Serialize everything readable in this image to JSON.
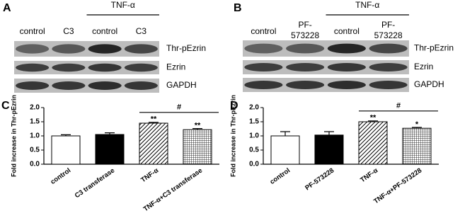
{
  "blot_panels": [
    {
      "label": "A",
      "treatment": "TNF-α",
      "lanes": [
        [
          "control"
        ],
        [
          "C3"
        ],
        [
          "control"
        ],
        [
          "C3"
        ]
      ],
      "rows": [
        "Thr-pEzrin",
        "Ezrin",
        "GAPDH"
      ]
    },
    {
      "label": "B",
      "treatment": "TNF-α",
      "lanes": [
        [
          "control"
        ],
        [
          "PF-",
          "573228"
        ],
        [
          "control"
        ],
        [
          "PF-",
          "573228"
        ]
      ],
      "rows": [
        "Thr-pEzrin",
        "Ezrin",
        "GAPDH"
      ]
    }
  ],
  "chart_data": [
    {
      "type": "bar",
      "panel_label": "C",
      "y_label": "Fold increase in Thr-pEzrin",
      "categories": [
        "control",
        "C3 transferase",
        "TNF-α",
        "TNF-α+C3 transferase"
      ],
      "values": [
        1.0,
        1.05,
        1.45,
        1.22
      ],
      "errors": [
        0.04,
        0.06,
        0.03,
        0.04
      ],
      "bar_styles": [
        "white",
        "black",
        "hatch",
        "grid"
      ],
      "significance": [
        null,
        null,
        "**",
        "**"
      ],
      "bracket_label": "#",
      "ylim": [
        0,
        2.0
      ],
      "yticks": [
        {
          "value": 0,
          "label": "0.0"
        },
        0.5,
        {
          "value": 1,
          "label": "1.0"
        },
        1.5,
        {
          "value": 2,
          "label": "2.0"
        }
      ]
    },
    {
      "type": "bar",
      "panel_label": "D",
      "y_label": "Fold increase in Thr-pEzrin",
      "categories": [
        "control",
        "PF-573228",
        "TNF-α",
        "TNF-α+PF-573228"
      ],
      "values": [
        1.0,
        1.03,
        1.5,
        1.27
      ],
      "errors": [
        0.15,
        0.12,
        0.03,
        0.03
      ],
      "bar_styles": [
        "white",
        "black",
        "hatch",
        "grid"
      ],
      "significance": [
        null,
        null,
        "**",
        "*"
      ],
      "bracket_label": "#",
      "ylim": [
        0,
        2.0
      ],
      "yticks": [
        {
          "value": 0,
          "label": "0.0"
        },
        0.5,
        {
          "value": 1,
          "label": "1.0"
        },
        1.5,
        {
          "value": 2,
          "label": "2.0"
        }
      ]
    }
  ]
}
